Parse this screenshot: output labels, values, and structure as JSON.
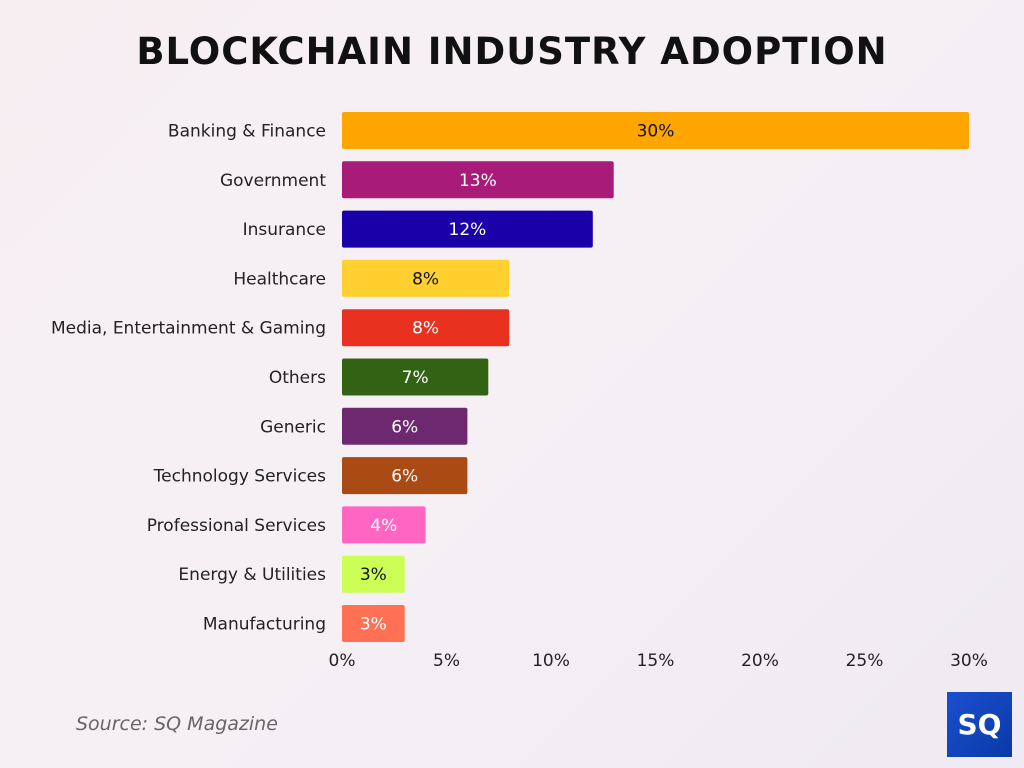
{
  "chart_data": {
    "type": "bar",
    "orientation": "horizontal",
    "title": "BLOCKCHAIN INDUSTRY ADOPTION",
    "categories": [
      "Banking & Finance",
      "Government",
      "Insurance",
      "Healthcare",
      "Media, Entertainment & Gaming",
      "Others",
      "Generic",
      "Technology Services",
      "Professional Services",
      "Energy & Utilities",
      "Manufacturing"
    ],
    "values": [
      30,
      13,
      12,
      8,
      8,
      7,
      6,
      6,
      4,
      3,
      3
    ],
    "data_labels": [
      "30%",
      "13%",
      "12%",
      "8%",
      "8%",
      "7%",
      "6%",
      "6%",
      "4%",
      "3%",
      "3%"
    ],
    "colors": [
      "#FFA500",
      "#A91B78",
      "#1A00A8",
      "#FFD030",
      "#E8321F",
      "#326214",
      "#6E2870",
      "#AA4A14",
      "#FF66C4",
      "#CCFF55",
      "#FF7055"
    ],
    "label_colors": [
      "#111111",
      "#ffffff",
      "#ffffff",
      "#111111",
      "#ffffff",
      "#ffffff",
      "#ffffff",
      "#ffffff",
      "#ffffff",
      "#111111",
      "#ffffff"
    ],
    "xlim": [
      0,
      30
    ],
    "xticks": [
      "0%",
      "5%",
      "10%",
      "15%",
      "20%",
      "25%",
      "30%"
    ],
    "xtick_values": [
      0,
      5,
      10,
      15,
      20,
      25,
      30
    ],
    "grid": false,
    "legend": "none"
  },
  "source": "Source: SQ Magazine",
  "logo_text": "SQ"
}
